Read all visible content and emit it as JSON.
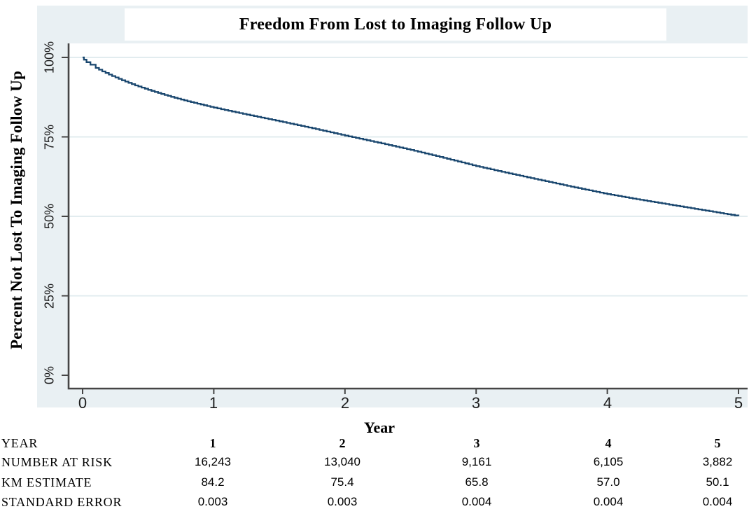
{
  "colors": {
    "graph_background": "#e9f0f3",
    "plot_background": "#ffffff",
    "gridline": "#e2ecef",
    "axis": "#454545",
    "curve": "#1a476f",
    "text": "#000000"
  },
  "chart_data": {
    "type": "line",
    "subtype": "kaplan-meier-step",
    "title": "Freedom From Lost to Imaging Follow Up",
    "xlabel": "Year",
    "ylabel": "Percent Not Lost To Imaging Follow Up",
    "xlim": [
      0,
      5
    ],
    "ylim": [
      0,
      100
    ],
    "x_ticks": [
      0,
      1,
      2,
      3,
      4,
      5
    ],
    "y_tick_values": [
      100,
      75,
      50,
      25,
      0
    ],
    "y_tick_labels": [
      "100%",
      "75%",
      "50%",
      "25%",
      "0%"
    ],
    "grid": "horizontal gridlines at 25, 50, 75, 100",
    "legend_position": "none",
    "series": [
      {
        "name": "KM estimate: percent not lost to imaging follow up",
        "color": "#1a476f",
        "step": true,
        "points": [
          [
            0,
            100
          ],
          [
            0.01,
            99.3
          ],
          [
            0.03,
            98.5
          ],
          [
            0.06,
            97.7
          ],
          [
            0.1,
            96.7
          ],
          [
            0.15,
            95.6
          ],
          [
            0.2,
            94.6
          ],
          [
            0.3,
            92.8
          ],
          [
            0.4,
            91.2
          ],
          [
            0.5,
            89.8
          ],
          [
            0.6,
            88.5
          ],
          [
            0.7,
            87.3
          ],
          [
            0.8,
            86.2
          ],
          [
            0.9,
            85.2
          ],
          [
            1,
            84.2
          ],
          [
            1.25,
            82.0
          ],
          [
            1.5,
            79.9
          ],
          [
            1.75,
            77.7
          ],
          [
            2,
            75.4
          ],
          [
            2.25,
            73.2
          ],
          [
            2.5,
            70.9
          ],
          [
            2.75,
            68.4
          ],
          [
            3,
            65.8
          ],
          [
            3.25,
            63.5
          ],
          [
            3.5,
            61.3
          ],
          [
            3.75,
            59.1
          ],
          [
            4,
            57.0
          ],
          [
            4.25,
            55.2
          ],
          [
            4.5,
            53.5
          ],
          [
            4.75,
            51.8
          ],
          [
            5,
            50.1
          ]
        ]
      }
    ],
    "annual_summary": {
      "years": [
        1,
        2,
        3,
        4,
        5
      ],
      "number_at_risk": [
        16243,
        13040,
        9161,
        6105,
        3882
      ],
      "km_estimate": [
        84.2,
        75.4,
        65.8,
        57.0,
        50.1
      ],
      "standard_error": [
        0.003,
        0.003,
        0.004,
        0.004,
        0.004
      ]
    }
  },
  "risk_table": {
    "x_title": "Year",
    "rows": [
      {
        "label": "YEAR",
        "values": [
          "1",
          "2",
          "3",
          "4",
          "5"
        ]
      },
      {
        "label": "NUMBER AT RISK",
        "values": [
          "16,243",
          "13,040",
          "9,161",
          "6,105",
          "3,882"
        ]
      },
      {
        "label": "KM ESTIMATE",
        "values": [
          "84.2",
          "75.4",
          "65.8",
          "57.0",
          "50.1"
        ]
      },
      {
        "label": "STANDARD ERROR",
        "values": [
          "0.003",
          "0.003",
          "0.004",
          "0.004",
          "0.004"
        ]
      }
    ]
  }
}
